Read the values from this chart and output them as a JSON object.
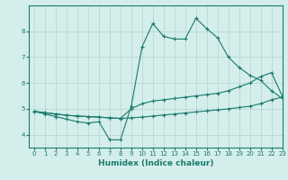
{
  "xlabel": "Humidex (Indice chaleur)",
  "xlim": [
    -0.5,
    23
  ],
  "ylim": [
    3.5,
    9.0
  ],
  "yticks": [
    4,
    5,
    6,
    7,
    8
  ],
  "xticks": [
    0,
    1,
    2,
    3,
    4,
    5,
    6,
    7,
    8,
    9,
    10,
    11,
    12,
    13,
    14,
    15,
    16,
    17,
    18,
    19,
    20,
    21,
    22,
    23
  ],
  "background_color": "#d4eeeb",
  "grid_color": "#b8d8d4",
  "line_color": "#1a7a6e",
  "series": [
    {
      "x": [
        0,
        1,
        2,
        3,
        4,
        5,
        6,
        7,
        8,
        9,
        10,
        11,
        12,
        13,
        14,
        15,
        16,
        17,
        18,
        19,
        20,
        21,
        22,
        23
      ],
      "y": [
        4.9,
        4.85,
        4.8,
        4.75,
        4.72,
        4.7,
        4.68,
        4.65,
        4.63,
        4.65,
        4.68,
        4.72,
        4.76,
        4.8,
        4.84,
        4.88,
        4.92,
        4.96,
        5.0,
        5.05,
        5.1,
        5.2,
        5.35,
        5.45
      ]
    },
    {
      "x": [
        0,
        1,
        2,
        3,
        4,
        5,
        6,
        7,
        8,
        9,
        10,
        11,
        12,
        13,
        14,
        15,
        16,
        17,
        18,
        19,
        20,
        21,
        22,
        23
      ],
      "y": [
        4.9,
        4.85,
        4.8,
        4.75,
        4.72,
        4.7,
        4.68,
        4.65,
        4.63,
        5.0,
        5.2,
        5.3,
        5.35,
        5.4,
        5.45,
        5.5,
        5.55,
        5.6,
        5.7,
        5.85,
        6.0,
        6.25,
        6.4,
        5.5
      ]
    },
    {
      "x": [
        0,
        1,
        2,
        3,
        4,
        5,
        6,
        7,
        8,
        9,
        10,
        11,
        12,
        13,
        14,
        15,
        16,
        17,
        18,
        19,
        20,
        21,
        22,
        23
      ],
      "y": [
        4.9,
        4.8,
        4.7,
        4.6,
        4.5,
        4.45,
        4.5,
        3.8,
        3.8,
        5.1,
        7.4,
        8.3,
        7.8,
        7.7,
        7.7,
        8.5,
        8.1,
        7.75,
        7.0,
        6.6,
        6.3,
        6.1,
        5.7,
        5.4
      ]
    }
  ]
}
